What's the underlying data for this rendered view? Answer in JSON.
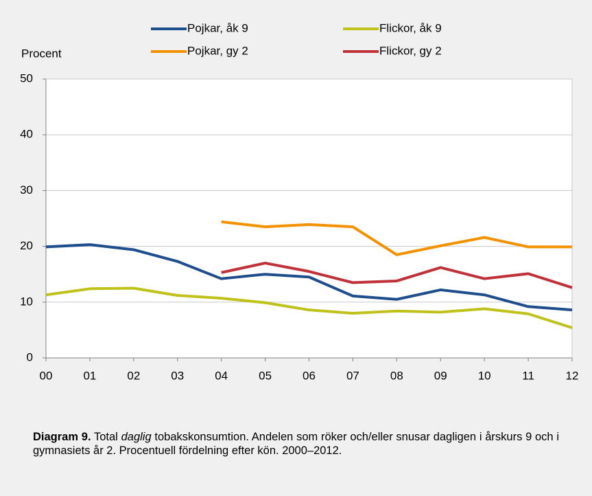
{
  "chart_data": {
    "type": "line",
    "y_label": "Procent",
    "categories": [
      "00",
      "01",
      "02",
      "03",
      "04",
      "05",
      "06",
      "07",
      "08",
      "09",
      "10",
      "11",
      "12"
    ],
    "series": [
      {
        "name": "Pojkar, åk 9",
        "color": "#1f4e8c",
        "values": [
          19.9,
          20.3,
          19.4,
          17.3,
          14.2,
          15.0,
          14.5,
          11.1,
          10.5,
          12.2,
          11.3,
          9.2,
          8.6
        ]
      },
      {
        "name": "Flickor, åk 9",
        "color": "#bfc21a",
        "values": [
          11.3,
          12.4,
          12.5,
          11.2,
          10.7,
          9.9,
          8.6,
          8.0,
          8.4,
          8.2,
          8.8,
          7.9,
          5.4
        ]
      },
      {
        "name": "Pojkar, gy 2",
        "color": "#f39200",
        "values": [
          null,
          null,
          null,
          null,
          24.4,
          23.5,
          23.9,
          23.5,
          18.5,
          20.1,
          21.6,
          19.9,
          19.9
        ]
      },
      {
        "name": "Flickor, gy 2",
        "color": "#c0323a",
        "values": [
          null,
          null,
          null,
          null,
          15.3,
          17.0,
          15.5,
          13.5,
          13.8,
          16.2,
          14.2,
          15.1,
          12.6
        ]
      }
    ],
    "ylim": [
      0,
      50
    ],
    "yticks": [
      0,
      10,
      20,
      30,
      40,
      50
    ],
    "grid": true
  },
  "caption": {
    "label": "Diagram 9.",
    "text_before": "Total",
    "emphasis": "daglig",
    "text_after": "tobakskonsumtion. Andelen som röker och/eller snusar dagligen i årskurs 9 och i gymnasiets år 2. Procentuell fördelning efter kön. 2000–2012."
  }
}
